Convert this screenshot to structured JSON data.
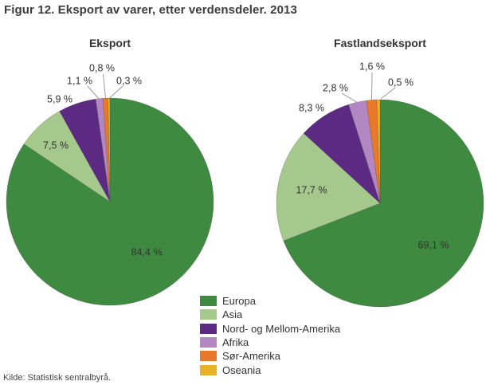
{
  "page": {
    "title": "Figur 12. Eksport av varer, etter verdensdeler. 2013",
    "source": "Kilde: Statistisk sentralbyrå."
  },
  "legend": {
    "items": [
      {
        "label": "Europa",
        "color": "#3e8a41"
      },
      {
        "label": "Asia",
        "color": "#a5c88c"
      },
      {
        "label": "Nord- og Mellom-Amerika",
        "color": "#5c2a82"
      },
      {
        "label": "Afrika",
        "color": "#b287c2"
      },
      {
        "label": "Sør-Amerika",
        "color": "#e8782a"
      },
      {
        "label": "Oseania",
        "color": "#eab226"
      }
    ]
  },
  "chart_data": [
    {
      "type": "pie",
      "title": "Eksport",
      "unit": "%",
      "categories": [
        "Europa",
        "Asia",
        "Nord- og Mellom-Amerika",
        "Afrika",
        "Sør-Amerika",
        "Oseania"
      ],
      "values": [
        84.4,
        7.5,
        5.9,
        1.1,
        0.8,
        0.3
      ],
      "labels": [
        "84,4 %",
        "7,5 %",
        "5,9 %",
        "1,1 %",
        "0,8 %",
        "0,3 %"
      ],
      "colors": [
        "#3e8a41",
        "#a5c88c",
        "#5c2a82",
        "#b287c2",
        "#e8782a",
        "#eab226"
      ],
      "start_angle_deg": 0,
      "direction": "clockwise"
    },
    {
      "type": "pie",
      "title": "Fastlandseksport",
      "unit": "%",
      "categories": [
        "Europa",
        "Asia",
        "Nord- og Mellom-Amerika",
        "Afrika",
        "Sør-Amerika",
        "Oseania"
      ],
      "values": [
        69.1,
        17.7,
        8.3,
        2.8,
        1.6,
        0.5
      ],
      "labels": [
        "69,1 %",
        "17,7 %",
        "8,3 %",
        "2,8 %",
        "1,6 %",
        "0,5 %"
      ],
      "colors": [
        "#3e8a41",
        "#a5c88c",
        "#5c2a82",
        "#b287c2",
        "#e8782a",
        "#eab226"
      ],
      "start_angle_deg": 0,
      "direction": "clockwise"
    }
  ]
}
